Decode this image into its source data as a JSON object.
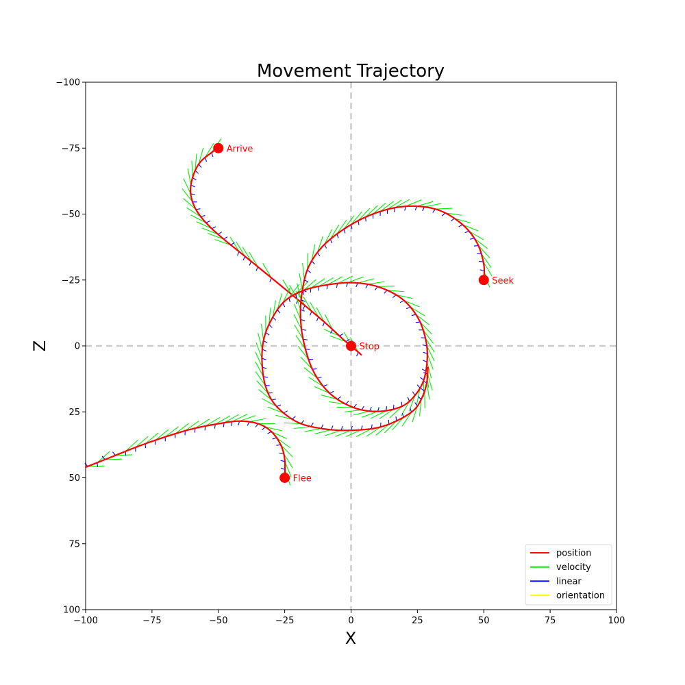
{
  "chart_data": {
    "type": "line",
    "title": "Movement Trajectory",
    "xlabel": "X",
    "ylabel": "Z",
    "xlim": [
      -100,
      100
    ],
    "ylim": [
      -100,
      100
    ],
    "y_inverted": true,
    "xticks": [
      -100,
      -75,
      -50,
      -25,
      0,
      25,
      50,
      75,
      100
    ],
    "yticks": [
      -100,
      -75,
      -50,
      -25,
      0,
      25,
      50,
      75,
      100
    ],
    "zero_lines": true,
    "legend": {
      "placement": "lower-right",
      "entries": [
        {
          "label": "position",
          "color": "#ff0000"
        },
        {
          "label": "velocity",
          "color": "#00ee00"
        },
        {
          "label": "linear",
          "color": "#0000ff"
        },
        {
          "label": "orientation",
          "color": "#ffff00"
        }
      ]
    },
    "markers": [
      {
        "label": "Arrive",
        "x": -50,
        "z": -75
      },
      {
        "label": "Seek",
        "x": 50,
        "z": -25
      },
      {
        "label": "Stop",
        "x": 0,
        "z": 0
      },
      {
        "label": "Flee",
        "x": -25,
        "z": 50
      }
    ],
    "series": [
      {
        "label": "Arrive",
        "points": [
          [
            -50,
            -75
          ],
          [
            -53,
            -73
          ],
          [
            -57,
            -69.5
          ],
          [
            -59.5,
            -64.5
          ],
          [
            -60.5,
            -59
          ],
          [
            -59.5,
            -54
          ],
          [
            -57,
            -49.5
          ],
          [
            -53,
            -45
          ],
          [
            -48,
            -40.5
          ],
          [
            -40,
            -34
          ],
          [
            -30,
            -25.8
          ],
          [
            -20,
            -17.5
          ],
          [
            -10,
            -9
          ],
          [
            -3,
            -2.5
          ],
          [
            0,
            0
          ],
          [
            4,
            3.5
          ]
        ]
      },
      {
        "label": "Seek",
        "points": [
          [
            50,
            -25
          ],
          [
            50,
            -31
          ],
          [
            47.5,
            -39
          ],
          [
            42,
            -46
          ],
          [
            33,
            -51.5
          ],
          [
            22,
            -53
          ],
          [
            11,
            -51
          ],
          [
            0,
            -46
          ],
          [
            -10,
            -38.5
          ],
          [
            -16,
            -30
          ],
          [
            -18.5,
            -20
          ],
          [
            -19,
            -10
          ],
          [
            -17.5,
            0
          ],
          [
            -14,
            10
          ],
          [
            -8,
            18
          ],
          [
            0,
            23
          ],
          [
            8,
            24.8
          ],
          [
            16,
            24
          ],
          [
            22,
            21
          ],
          [
            27,
            14
          ],
          [
            28.7,
            5
          ],
          [
            28,
            -3
          ],
          [
            25,
            -11
          ],
          [
            19,
            -18
          ],
          [
            10,
            -22.5
          ],
          [
            0,
            -24
          ],
          [
            -10,
            -23
          ],
          [
            -18,
            -21
          ],
          [
            -25,
            -17
          ],
          [
            -30,
            -10
          ],
          [
            -33,
            -2
          ],
          [
            -33.5,
            7
          ],
          [
            -32,
            16
          ],
          [
            -28,
            23
          ],
          [
            -20,
            29
          ],
          [
            -10,
            31.5
          ],
          [
            0,
            32
          ],
          [
            10,
            31
          ],
          [
            18,
            28
          ],
          [
            24,
            24
          ],
          [
            27,
            19
          ],
          [
            28.5,
            14
          ],
          [
            29,
            8
          ]
        ]
      },
      {
        "label": "Flee",
        "points": [
          [
            -25,
            50
          ],
          [
            -25,
            43
          ],
          [
            -26.5,
            37.5
          ],
          [
            -30,
            32.5
          ],
          [
            -35,
            29.5
          ],
          [
            -42,
            28.5
          ],
          [
            -50,
            29.5
          ],
          [
            -60,
            31.5
          ],
          [
            -70,
            34.5
          ],
          [
            -80,
            38
          ],
          [
            -90,
            42
          ],
          [
            -100,
            46
          ]
        ]
      }
    ]
  }
}
